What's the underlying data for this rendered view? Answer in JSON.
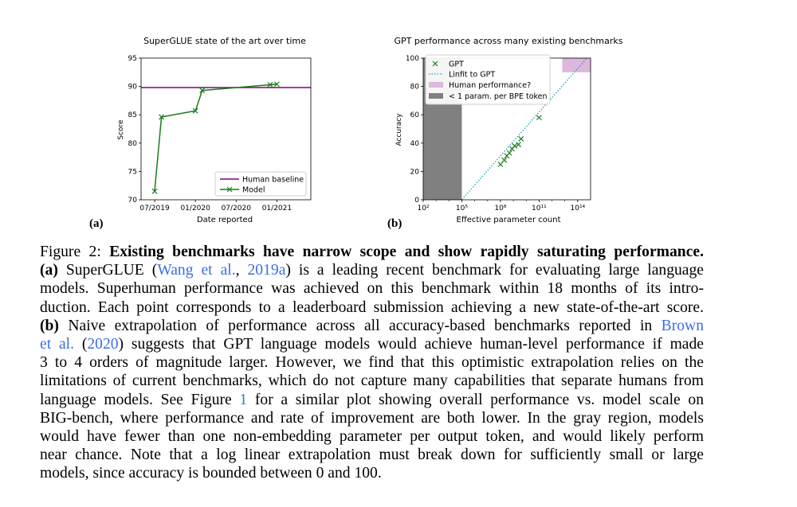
{
  "chart_data": [
    {
      "type": "line",
      "panel_label": "(a)",
      "title": "SuperGLUE state of the art over time",
      "xlabel": "Date reported",
      "ylabel": "Score",
      "ylim": [
        70,
        95
      ],
      "x_tick_labels": [
        "07/2019",
        "01/2020",
        "07/2020",
        "01/2021"
      ],
      "y_ticks": [
        70,
        75,
        80,
        85,
        90,
        95
      ],
      "series": [
        {
          "name": "Human baseline",
          "color": "#800080",
          "marker": "none",
          "x": [
            "2019-05",
            "2021-06"
          ],
          "y": [
            89.8,
            89.8
          ]
        },
        {
          "name": "Model",
          "color": "#1a7a1a",
          "marker": "x",
          "x": [
            "2019-07",
            "2019-08",
            "2020-01",
            "2020-02",
            "2020-12",
            "2021-01"
          ],
          "y": [
            71.5,
            84.6,
            85.7,
            89.3,
            90.3,
            90.4
          ]
        }
      ],
      "legend": "lower-right",
      "grid": false
    },
    {
      "type": "scatter",
      "panel_label": "(b)",
      "title": "GPT performance across many existing benchmarks",
      "xlabel": "Effective parameter count",
      "ylabel": "Accuracy",
      "x_scale": "log",
      "xlim_exp": [
        2,
        15
      ],
      "x_tick_labels": [
        "10²",
        "10⁵",
        "10⁸",
        "10¹¹",
        "10¹⁴"
      ],
      "ylim": [
        0,
        100
      ],
      "y_ticks": [
        0,
        20,
        40,
        60,
        80,
        100
      ],
      "series": [
        {
          "name": "GPT",
          "color": "#1a7a1a",
          "marker": "x",
          "x_exp": [
            8.0,
            8.3,
            8.5,
            8.7,
            8.9,
            9.1,
            9.4,
            9.6,
            11.0
          ],
          "y": [
            25,
            28,
            31,
            33,
            36,
            38,
            39,
            43,
            58
          ]
        },
        {
          "name": "Linfit to GPT",
          "color": "#17a2b8",
          "style": "dotted",
          "x_exp": [
            5.0,
            15.0
          ],
          "y": [
            0,
            103
          ]
        }
      ],
      "regions": [
        {
          "name": "Human performance?",
          "color": "#dcb8dc",
          "x_exp": [
            12.8,
            15
          ],
          "y": [
            90,
            100
          ]
        },
        {
          "name": "< 1 param. per BPE token",
          "color": "#808080",
          "x_exp": [
            2,
            5
          ],
          "y": [
            0,
            100
          ]
        }
      ],
      "legend": "top-left",
      "grid": false
    }
  ],
  "caption": {
    "lines": [
      [
        {
          "t": "Figure 2: "
        },
        {
          "t": "Existing benchmarks have narrow scope and show rapidly saturating performance.",
          "b": true
        }
      ],
      [
        {
          "t": "(a)",
          "b": true
        },
        {
          "t": " SuperGLUE ("
        },
        {
          "t": "Wang et al.",
          "c": true
        },
        {
          "t": ", "
        },
        {
          "t": "2019a",
          "c": true
        },
        {
          "t": ") is a leading recent benchmark for evaluating large language"
        }
      ],
      [
        {
          "t": "models. Superhuman performance was achieved on this benchmark within 18 months of its intro-"
        }
      ],
      [
        {
          "t": "duction. Each point corresponds to a leaderboard submission achieving a new state-of-the-art score."
        }
      ],
      [
        {
          "t": "(b)",
          "b": true
        },
        {
          "t": " Naive extrapolation of performance across all accuracy-based benchmarks reported in "
        },
        {
          "t": "Brown",
          "c": true
        }
      ],
      [
        {
          "t": "et al.",
          "c": true
        },
        {
          "t": " ("
        },
        {
          "t": "2020",
          "c": true
        },
        {
          "t": ") suggests that GPT language models would achieve human-level performance if made"
        }
      ],
      [
        {
          "t": "3 to 4 orders of magnitude larger. However, we find that this optimistic extrapolation relies on the"
        }
      ],
      [
        {
          "t": "limitations of current benchmarks, which do not capture many capabilities that separate humans from"
        }
      ],
      [
        {
          "t": "language models. See Figure "
        },
        {
          "t": "1",
          "c": true
        },
        {
          "t": " for a similar plot showing overall performance vs. model scale on"
        }
      ],
      [
        {
          "t": "BIG-bench, where performance and rate of improvement are both lower. In the gray region, models"
        }
      ],
      [
        {
          "t": "would have fewer than one non-embedding parameter per output token, and would likely perform"
        }
      ],
      [
        {
          "t": "near chance. Note that a log linear extrapolation must break down for sufficiently small or large"
        }
      ],
      [
        {
          "t": "models, since accuracy is bounded between 0 and 100."
        }
      ]
    ]
  }
}
